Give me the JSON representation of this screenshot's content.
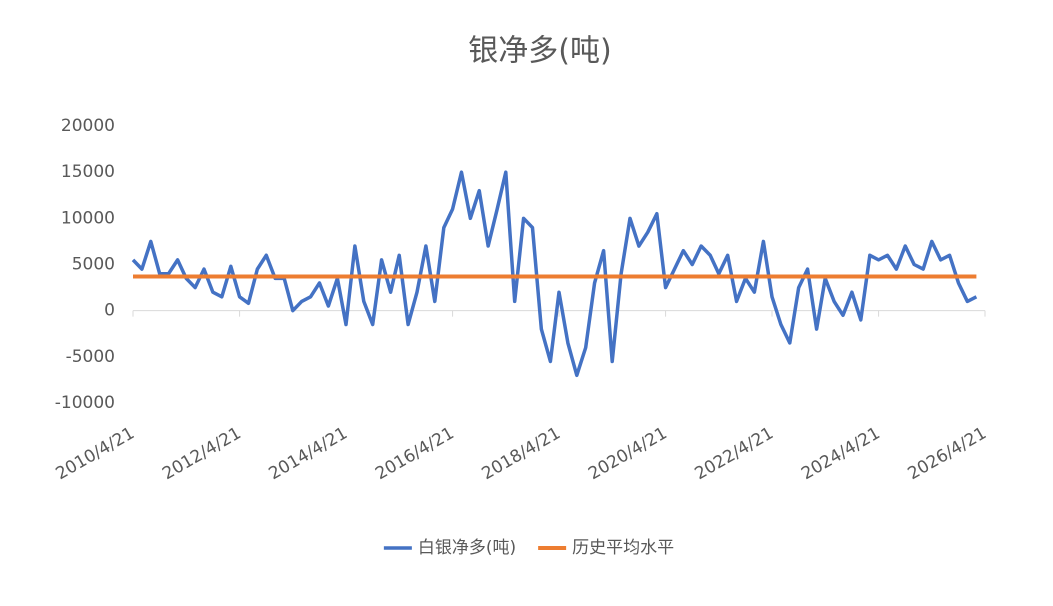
{
  "chart_data": {
    "type": "line",
    "title": "银净多(吨)",
    "x": [
      "2010/4/21",
      "2010/6/21",
      "2010/8/21",
      "2010/10/21",
      "2010/12/21",
      "2011/2/21",
      "2011/4/21",
      "2011/6/21",
      "2011/8/21",
      "2011/10/21",
      "2011/12/21",
      "2012/2/21",
      "2012/4/21",
      "2012/6/21",
      "2012/8/21",
      "2012/10/21",
      "2012/12/21",
      "2013/2/21",
      "2013/4/21",
      "2013/6/21",
      "2013/8/21",
      "2013/10/21",
      "2013/12/21",
      "2014/2/21",
      "2014/4/21",
      "2014/6/21",
      "2014/8/21",
      "2014/10/21",
      "2014/12/21",
      "2015/2/21",
      "2015/4/21",
      "2015/6/21",
      "2015/8/21",
      "2015/10/21",
      "2015/12/21",
      "2016/2/21",
      "2016/4/21",
      "2016/6/21",
      "2016/8/21",
      "2016/10/21",
      "2016/12/21",
      "2017/2/21",
      "2017/4/21",
      "2017/6/21",
      "2017/8/21",
      "2017/10/21",
      "2017/12/21",
      "2018/2/21",
      "2018/4/21",
      "2018/6/21",
      "2018/8/21",
      "2018/10/21",
      "2018/12/21",
      "2019/2/21",
      "2019/4/21",
      "2019/6/21",
      "2019/8/21",
      "2019/10/21",
      "2019/12/21",
      "2020/2/21",
      "2020/4/21",
      "2020/6/21",
      "2020/8/21",
      "2020/10/21",
      "2020/12/21",
      "2021/2/21",
      "2021/4/21",
      "2021/6/21",
      "2021/8/21",
      "2021/10/21",
      "2021/12/21",
      "2022/2/21",
      "2022/4/21",
      "2022/6/21",
      "2022/8/21",
      "2022/10/21",
      "2022/12/21",
      "2023/2/21",
      "2023/4/21",
      "2023/6/21",
      "2023/8/21",
      "2023/10/21",
      "2023/12/21",
      "2024/2/21",
      "2024/4/21",
      "2024/6/21",
      "2024/8/21",
      "2024/10/21",
      "2024/12/21",
      "2025/2/21",
      "2025/4/21",
      "2025/6/21",
      "2025/8/21",
      "2025/10/21",
      "2025/12/21",
      "2026/2/21"
    ],
    "series": [
      {
        "name": "白银净多(吨)",
        "color": "#4472c4",
        "width": 3.5,
        "values": [
          5500,
          4500,
          7500,
          4000,
          4000,
          5500,
          3500,
          2500,
          4500,
          2000,
          1500,
          4800,
          1500,
          800,
          4500,
          6000,
          3500,
          3500,
          0,
          1000,
          1500,
          3000,
          500,
          3500,
          -1500,
          7000,
          1000,
          -1500,
          5500,
          2000,
          6000,
          -1500,
          2000,
          7000,
          1000,
          9000,
          11000,
          15000,
          10000,
          13000,
          7000,
          11000,
          15000,
          1000,
          10000,
          9000,
          -2000,
          -5500,
          2000,
          -3500,
          -7000,
          -4000,
          3000,
          6500,
          -5500,
          4000,
          10000,
          7000,
          8500,
          10500,
          2500,
          4500,
          6500,
          5000,
          7000,
          6000,
          4000,
          6000,
          1000,
          3500,
          2000,
          7500,
          1500,
          -1500,
          -3500,
          2500,
          4500,
          -2000,
          3500,
          1000,
          -500,
          2000,
          -1000,
          6000,
          5500,
          6000,
          4500,
          7000,
          5000,
          4500,
          7500,
          5500,
          6000,
          3000,
          1000,
          1500
        ]
      },
      {
        "name": "历史平均水平",
        "color": "#ed7d31",
        "width": 4,
        "values": [
          3700,
          3700,
          3700,
          3700,
          3700,
          3700,
          3700,
          3700,
          3700,
          3700,
          3700,
          3700,
          3700,
          3700,
          3700,
          3700,
          3700,
          3700,
          3700,
          3700,
          3700,
          3700,
          3700,
          3700,
          3700,
          3700,
          3700,
          3700,
          3700,
          3700,
          3700,
          3700,
          3700,
          3700,
          3700,
          3700,
          3700,
          3700,
          3700,
          3700,
          3700,
          3700,
          3700,
          3700,
          3700,
          3700,
          3700,
          3700,
          3700,
          3700,
          3700,
          3700,
          3700,
          3700,
          3700,
          3700,
          3700,
          3700,
          3700,
          3700,
          3700,
          3700,
          3700,
          3700,
          3700,
          3700,
          3700,
          3700,
          3700,
          3700,
          3700,
          3700,
          3700,
          3700,
          3700,
          3700,
          3700,
          3700,
          3700,
          3700,
          3700,
          3700,
          3700,
          3700,
          3700,
          3700,
          3700,
          3700,
          3700,
          3700,
          3700,
          3700,
          3700,
          3700,
          3700,
          3700
        ]
      }
    ],
    "xlim": [
      "2010/4/21",
      "2026/4/21"
    ],
    "xticks": [
      "2010/4/21",
      "2012/4/21",
      "2014/4/21",
      "2016/4/21",
      "2018/4/21",
      "2020/4/21",
      "2022/4/21",
      "2024/4/21",
      "2026/4/21"
    ],
    "ylim": [
      -10000,
      20000
    ],
    "yticks": [
      -10000,
      -5000,
      0,
      5000,
      10000,
      15000,
      20000
    ],
    "grid": false,
    "legend": "bottom"
  }
}
